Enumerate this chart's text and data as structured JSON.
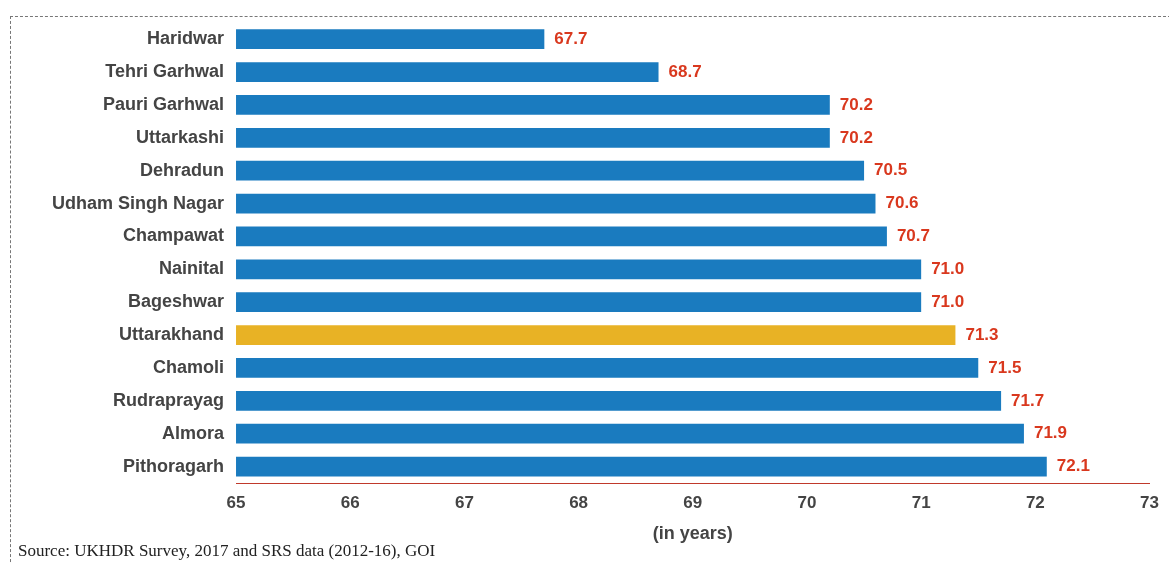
{
  "chart_data": {
    "type": "bar",
    "orientation": "horizontal",
    "xlabel": "(in years)",
    "categories": [
      "Haridwar",
      "Tehri Garhwal",
      "Pauri Garhwal",
      "Uttarkashi",
      "Dehradun",
      "Udham Singh Nagar",
      "Champawat",
      "Nainital",
      "Bageshwar",
      "Uttarakhand",
      "Chamoli",
      "Rudraprayag",
      "Almora",
      "Pithoragarh"
    ],
    "values": [
      67.7,
      68.7,
      70.2,
      70.2,
      70.5,
      70.6,
      70.7,
      71.0,
      71.0,
      71.3,
      71.5,
      71.7,
      71.9,
      72.1
    ],
    "value_labels": [
      "67.7",
      "68.7",
      "70.2",
      "70.2",
      "70.5",
      "70.6",
      "70.7",
      "71.0",
      "71.0",
      "71.3",
      "71.5",
      "71.7",
      "71.9",
      "72.1"
    ],
    "colors": [
      "#1a7bbf",
      "#1a7bbf",
      "#1a7bbf",
      "#1a7bbf",
      "#1a7bbf",
      "#1a7bbf",
      "#1a7bbf",
      "#1a7bbf",
      "#1a7bbf",
      "#e8b225",
      "#1a7bbf",
      "#1a7bbf",
      "#1a7bbf",
      "#1a7bbf"
    ],
    "xlim": [
      65,
      73
    ],
    "xticks": [
      65,
      66,
      67,
      68,
      69,
      70,
      71,
      72,
      73
    ],
    "grid": false,
    "legend": false,
    "annotations": [
      "Source: UKHDR Survey, 2017 and SRS data (2012-16), GOI"
    ]
  }
}
